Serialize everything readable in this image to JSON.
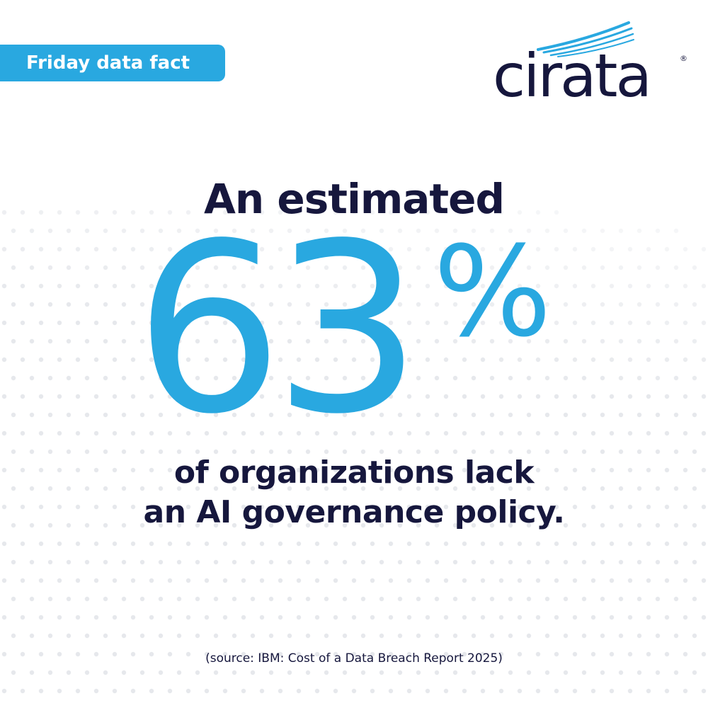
{
  "tag": {
    "label": "Friday data fact"
  },
  "brand": {
    "name": "cirata",
    "registered_mark": "®",
    "text_color": "#16173d",
    "accent_color": "#29a8e0"
  },
  "headline": "An estimated",
  "stat": {
    "value": "63",
    "unit": "%"
  },
  "body": {
    "line1": "of organizations lack",
    "line2": "an AI governance policy."
  },
  "source": "(source: IBM: Cost of a Data Breach Report 2025)",
  "colors": {
    "accent": "#29a8e0",
    "text": "#16173d",
    "background": "#ffffff",
    "dots": "#e6e8ec"
  }
}
